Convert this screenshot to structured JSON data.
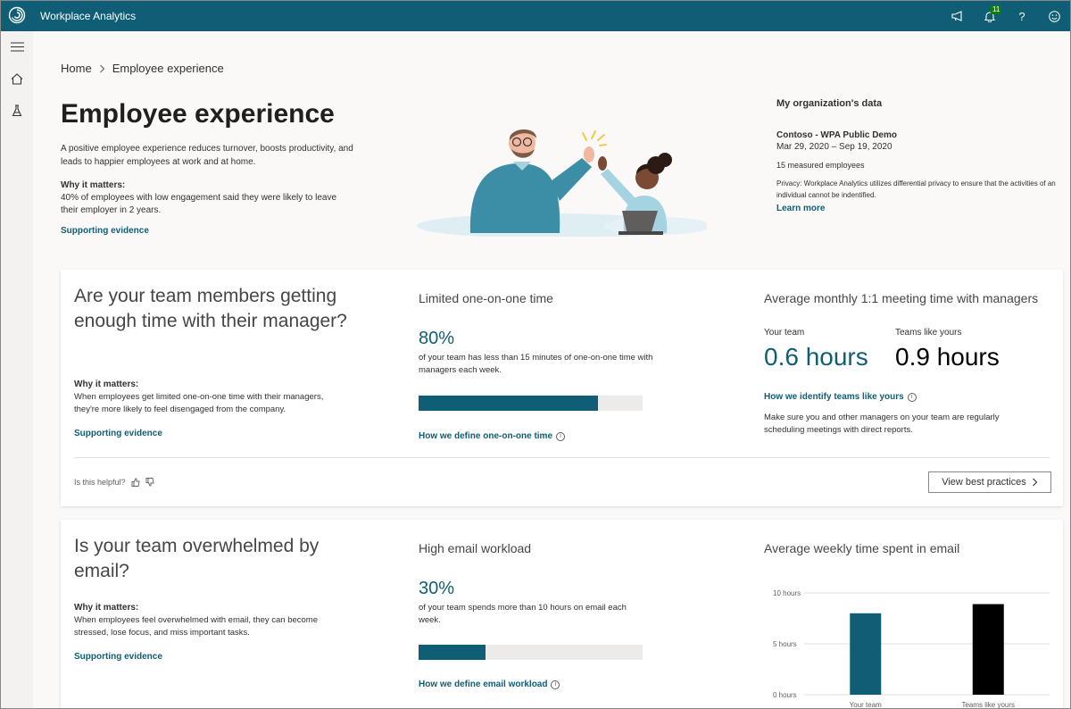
{
  "app": {
    "title": "Workplace Analytics",
    "notification_count": "11"
  },
  "header_icons": [
    "megaphone-icon",
    "bell-icon",
    "help-icon",
    "smiley-icon"
  ],
  "breadcrumb": {
    "home": "Home",
    "current": "Employee experience"
  },
  "hero": {
    "title": "Employee experience",
    "description": "A positive employee experience reduces turnover, boosts productivity, and leads to happier employees at work and at home.",
    "why_label": "Why it matters:",
    "why_text": "40% of employees with low engagement said they were likely to leave their employer in 2 years.",
    "link": "Supporting evidence"
  },
  "org": {
    "title": "My organization's data",
    "name": "Contoso - WPA Public Demo",
    "dates": "Mar 29, 2020 – Sep 19, 2020",
    "employees": "15 measured employees",
    "privacy": "Privacy: Workplace Analytics utilizes differential privacy to ensure that the activities of an individual cannot be indentified.",
    "learn_more": "Learn more"
  },
  "card1": {
    "question": "Are your team members getting enough time with their manager?",
    "why_label": "Why it matters:",
    "why_text": "When employees get limited one-on-one time with their managers, they're more likely to feel disengaged from the company.",
    "link": "Supporting evidence",
    "mid_title": "Limited one-on-one time",
    "percent": "80%",
    "percent_value": 0.8,
    "percent_desc": "of your team has less than 15 minutes of one-on-one time with managers each week.",
    "define_link": "How we define one-on-one time",
    "right_title": "Average monthly 1:1 meeting time with managers",
    "your_team_label": "Your team",
    "your_team_value": "0.6 hours",
    "teams_like_label": "Teams like yours",
    "teams_like_value": "0.9 hours",
    "identify_link": "How we identify teams like yours",
    "note": "Make sure you and other managers on your team are regularly scheduling meetings with direct reports.",
    "helpful": "Is this helpful?",
    "best_practices": "View best practices"
  },
  "card2": {
    "question": "Is your team overwhelmed by email?",
    "why_label": "Why it matters:",
    "why_text": "When employees feel overwhelmed with email, they can become stressed, lose focus, and miss important tasks.",
    "link": "Supporting evidence",
    "mid_title": "High email workload",
    "percent": "30%",
    "percent_value": 0.3,
    "percent_desc": "of your team spends more than 10 hours on email each week.",
    "define_link": "How we define email workload",
    "right_title": "Average weekly time spent in email"
  },
  "colors": {
    "brand": "#0f5e75",
    "peer": "#000000"
  },
  "chart_data": {
    "type": "bar",
    "categories": [
      "Your team",
      "Teams like yours"
    ],
    "values": [
      8,
      8.9
    ],
    "colors": [
      "#0f5e75",
      "#000000"
    ],
    "ytick_labels": [
      "10 hours",
      "5 hours",
      "0 hours"
    ],
    "yticks": [
      10,
      5,
      0
    ],
    "ylim": [
      0,
      10
    ],
    "grid": true
  }
}
